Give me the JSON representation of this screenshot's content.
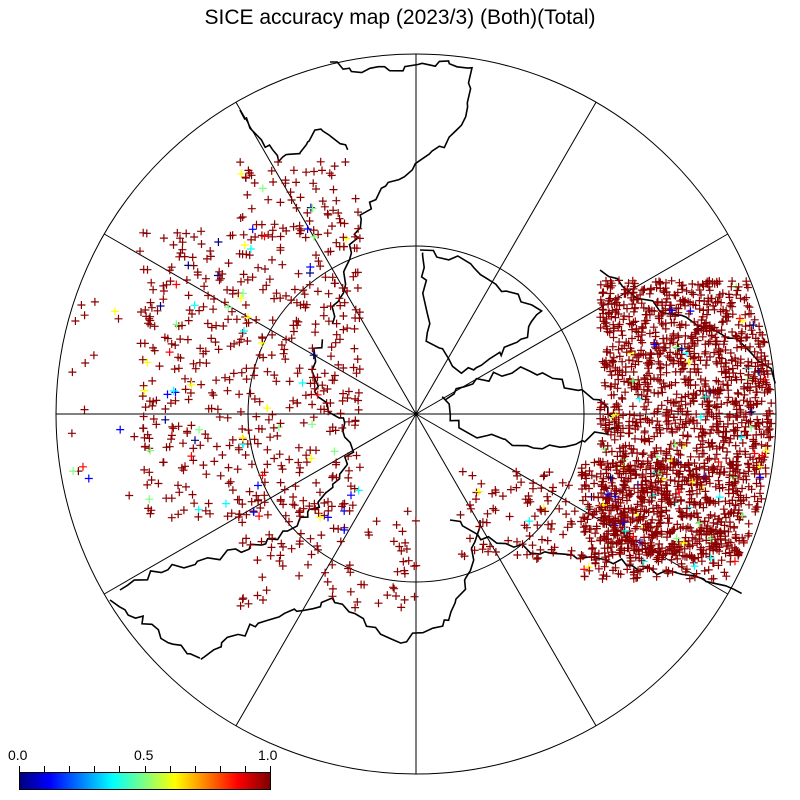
{
  "title": "SICE accuracy map (2023/3) (Both)(Total)",
  "colorbar": {
    "min_label": "0.0",
    "mid_label": "0.5",
    "max_label": "1.0",
    "colors": [
      "#00007f",
      "#0000ff",
      "#00ffff",
      "#7fff7f",
      "#ffff00",
      "#ff0000",
      "#7f0000"
    ]
  },
  "map": {
    "projection": "north polar stereographic",
    "marker": "+",
    "dominant_marker_color": "#8b0000",
    "graticule": "meridians every 30 degrees, one latitude circle",
    "coastline_color": "#000000"
  }
}
